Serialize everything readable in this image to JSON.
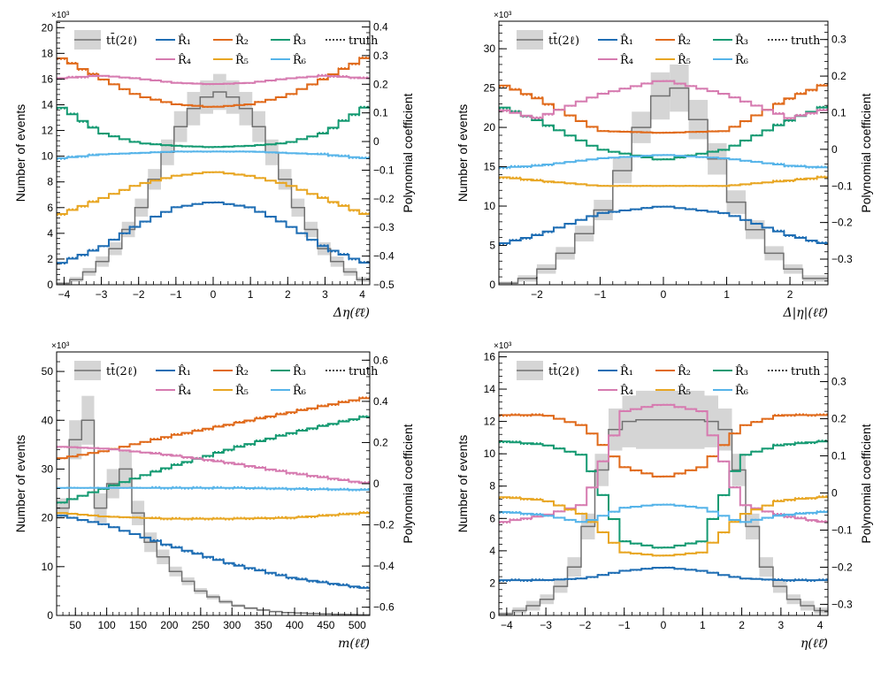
{
  "chart_data": [
    {
      "type": "line",
      "xlabel": "Δη(ℓ̄ℓ)",
      "ylabel": "Number of events",
      "y2label": "Polynomial coefficient",
      "multiplier": "×10³",
      "xlim": [
        -4.2,
        4.2
      ],
      "ylim": [
        0,
        20.5
      ],
      "y2lim": [
        -0.5,
        0.42
      ],
      "xticks": [
        -4,
        -3,
        -2,
        -1,
        0,
        1,
        2,
        3,
        4
      ],
      "xtick_labels": [
        "−4",
        "−3",
        "−2",
        "−1",
        "0",
        "1",
        "2",
        "3",
        "4"
      ],
      "yticks": [
        0,
        2,
        4,
        6,
        8,
        10,
        12,
        14,
        16,
        18,
        20
      ],
      "ytick_labels": [
        "0",
        "2",
        "4",
        "6",
        "8",
        "10",
        "12",
        "14",
        "16",
        "18",
        "20"
      ],
      "y2ticks": [
        -0.5,
        -0.4,
        -0.3,
        -0.2,
        -0.1,
        0,
        0.1,
        0.2,
        0.3,
        0.4
      ],
      "y2tick_labels": [
        "−0.5",
        "−0.4",
        "−0.3",
        "−0.2",
        "−0.1",
        "0",
        "0.1",
        "0.2",
        "0.3",
        "0.4"
      ],
      "legend": {
        "mc": "tt̄(2ℓ)",
        "truth": "truth",
        "series": [
          "R̂₁",
          "R̂₂",
          "R̂₃",
          "R̂₄",
          "R̂₅",
          "R̂₆"
        ]
      },
      "mc": {
        "x": [
          -4.2,
          -3.85,
          -3.5,
          -3.15,
          -2.8,
          -2.45,
          -2.1,
          -1.75,
          -1.4,
          -1.05,
          -0.7,
          -0.35,
          0,
          0.35,
          0.7,
          1.05,
          1.4,
          1.75,
          2.1,
          2.45,
          2.8,
          3.15,
          3.5,
          3.85
        ],
        "y": [
          0.1,
          0.4,
          1.0,
          1.8,
          2.8,
          4.3,
          6.0,
          8.2,
          10.3,
          12.3,
          13.7,
          14.6,
          15.0,
          14.6,
          13.7,
          12.3,
          10.3,
          8.2,
          6.0,
          4.3,
          2.8,
          1.8,
          1.0,
          0.4
        ],
        "err": [
          0.1,
          0.2,
          0.3,
          0.4,
          0.5,
          0.6,
          0.7,
          0.8,
          1.0,
          1.2,
          1.3,
          1.3,
          1.4,
          1.3,
          1.3,
          1.2,
          1.0,
          0.8,
          0.7,
          0.6,
          0.5,
          0.4,
          0.3,
          0.2
        ]
      },
      "series": [
        {
          "name": "R̂₁",
          "color": "#1f6eb4",
          "x": [
            -4.2,
            -3,
            -2,
            -1,
            0,
            1,
            2,
            3,
            4.2
          ],
          "y": [
            -0.43,
            -0.37,
            -0.29,
            -0.23,
            -0.21,
            -0.23,
            -0.29,
            -0.37,
            -0.43
          ]
        },
        {
          "name": "R̂₂",
          "color": "#e06a1b",
          "x": [
            -4.2,
            -3,
            -2,
            -1,
            0,
            1,
            2,
            3,
            4.2
          ],
          "y": [
            0.3,
            0.22,
            0.16,
            0.13,
            0.12,
            0.13,
            0.16,
            0.22,
            0.3
          ]
        },
        {
          "name": "R̂₃",
          "color": "#159a72",
          "x": [
            -4.2,
            -3,
            -2,
            -1,
            0,
            1,
            2,
            3,
            4.2
          ],
          "y": [
            0.13,
            0.03,
            -0.005,
            -0.015,
            -0.02,
            -0.015,
            -0.005,
            0.03,
            0.13
          ]
        },
        {
          "name": "R̂₄",
          "color": "#d67bb0",
          "x": [
            -4.2,
            -3,
            -2,
            -1,
            0,
            1,
            2,
            3,
            4.2
          ],
          "y": [
            0.22,
            0.23,
            0.22,
            0.205,
            0.2,
            0.205,
            0.22,
            0.23,
            0.22
          ]
        },
        {
          "name": "R̂₅",
          "color": "#e8a623",
          "x": [
            -4.2,
            -3,
            -2,
            -1,
            0,
            1,
            2,
            3,
            4.2
          ],
          "y": [
            -0.26,
            -0.2,
            -0.15,
            -0.12,
            -0.105,
            -0.12,
            -0.15,
            -0.2,
            -0.26
          ]
        },
        {
          "name": "R̂₆",
          "color": "#56b4e9",
          "x": [
            -4.2,
            -3,
            -2,
            -1,
            0,
            1,
            2,
            3,
            4.2
          ],
          "y": [
            -0.06,
            -0.045,
            -0.04,
            -0.035,
            -0.035,
            -0.035,
            -0.04,
            -0.045,
            -0.06
          ]
        }
      ]
    },
    {
      "type": "line",
      "xlabel": "Δ|η|(ℓℓ̄)",
      "ylabel": "Number of events",
      "y2label": "Polynomial coefficient",
      "multiplier": "×10³",
      "xlim": [
        -2.6,
        2.6
      ],
      "ylim": [
        0,
        33.5
      ],
      "y2lim": [
        -0.37,
        0.35
      ],
      "xticks": [
        -2,
        -1,
        0,
        1,
        2
      ],
      "xtick_labels": [
        "−2",
        "−1",
        "0",
        "1",
        "2"
      ],
      "yticks": [
        0,
        5,
        10,
        15,
        20,
        25,
        30
      ],
      "ytick_labels": [
        "0",
        "5",
        "10",
        "15",
        "20",
        "25",
        "30"
      ],
      "y2ticks": [
        -0.3,
        -0.2,
        -0.1,
        0,
        0.1,
        0.2,
        0.3
      ],
      "y2tick_labels": [
        "−0.3",
        "−0.2",
        "−0.1",
        "0",
        "0.1",
        "0.2",
        "0.3"
      ],
      "legend": {
        "mc": "tt̄(2ℓ)",
        "truth": "truth",
        "series": [
          "R̂₁",
          "R̂₂",
          "R̂₃",
          "R̂₄",
          "R̂₅",
          "R̂₆"
        ]
      },
      "mc": {
        "x": [
          -2.6,
          -2.3,
          -2.0,
          -1.7,
          -1.4,
          -1.1,
          -0.8,
          -0.5,
          -0.2,
          0.1,
          0.4,
          0.7,
          1.0,
          1.3,
          1.6,
          1.9,
          2.2
        ],
        "y": [
          0.2,
          0.8,
          2.0,
          4.0,
          6.5,
          9.5,
          14.5,
          20.0,
          24.0,
          25.0,
          21.0,
          16.0,
          10.5,
          7.0,
          4.0,
          2.0,
          0.8
        ],
        "err": [
          0.2,
          0.4,
          0.6,
          0.8,
          1.0,
          1.3,
          1.6,
          2.0,
          3.0,
          3.0,
          2.5,
          2.0,
          1.5,
          1.2,
          0.9,
          0.6,
          0.4
        ]
      },
      "series": [
        {
          "name": "R̂₁",
          "color": "#1f6eb4",
          "x": [
            -2.6,
            -2,
            -1,
            0,
            1,
            2,
            2.6
          ],
          "y": [
            -0.26,
            -0.235,
            -0.175,
            -0.155,
            -0.175,
            -0.235,
            -0.26
          ]
        },
        {
          "name": "R̂₂",
          "color": "#e06a1b",
          "x": [
            -2.6,
            -2,
            -1,
            0,
            1,
            2,
            2.6
          ],
          "y": [
            0.18,
            0.14,
            0.05,
            0.045,
            0.05,
            0.14,
            0.18
          ]
        },
        {
          "name": "R̂₃",
          "color": "#159a72",
          "x": [
            -2.6,
            -2,
            -1,
            0,
            1,
            2,
            2.6
          ],
          "y": [
            0.12,
            0.08,
            0.0,
            -0.03,
            0.0,
            0.08,
            0.12
          ]
        },
        {
          "name": "R̂₄",
          "color": "#d67bb0",
          "x": [
            -2.6,
            -2,
            -1,
            0,
            1,
            2,
            2.6
          ],
          "y": [
            0.11,
            0.085,
            0.15,
            0.19,
            0.15,
            0.085,
            0.11
          ]
        },
        {
          "name": "R̂₅",
          "color": "#e8a623",
          "x": [
            -2.6,
            -2,
            -1,
            0,
            1,
            2,
            2.6
          ],
          "y": [
            -0.075,
            -0.085,
            -0.1,
            -0.1,
            -0.1,
            -0.085,
            -0.075
          ]
        },
        {
          "name": "R̂₆",
          "color": "#56b4e9",
          "x": [
            -2.6,
            -2,
            -1,
            0,
            1,
            2,
            2.6
          ],
          "y": [
            -0.05,
            -0.045,
            -0.025,
            -0.015,
            -0.025,
            -0.045,
            -0.05
          ]
        }
      ]
    },
    {
      "type": "line",
      "xlabel": "m(ℓℓ̄)",
      "ylabel": "Number of events",
      "y2label": "Polynomial coefficient",
      "multiplier": "×10³",
      "xlim": [
        20,
        520
      ],
      "ylim": [
        0,
        54
      ],
      "y2lim": [
        -0.64,
        0.64
      ],
      "xticks": [
        50,
        100,
        150,
        200,
        250,
        300,
        350,
        400,
        450,
        500
      ],
      "xtick_labels": [
        "50",
        "100",
        "150",
        "200",
        "250",
        "300",
        "350",
        "400",
        "450",
        "500"
      ],
      "yticks": [
        0,
        10,
        20,
        30,
        40,
        50
      ],
      "ytick_labels": [
        "0",
        "10",
        "20",
        "30",
        "40",
        "50"
      ],
      "y2ticks": [
        -0.6,
        -0.4,
        -0.2,
        0,
        0.2,
        0.4,
        0.6
      ],
      "y2tick_labels": [
        "−0.6",
        "−0.4",
        "−0.2",
        "0",
        "0.2",
        "0.4",
        "0.6"
      ],
      "legend": {
        "mc": "tt̄(2ℓ)",
        "truth": "truth",
        "series": [
          "R̂₁",
          "R̂₂",
          "R̂₃",
          "R̂₄",
          "R̂₅",
          "R̂₆"
        ]
      },
      "mc": {
        "x": [
          20,
          40,
          60,
          80,
          100,
          120,
          140,
          160,
          180,
          200,
          220,
          240,
          260,
          280,
          300,
          320,
          340,
          360,
          380,
          400,
          420,
          440,
          460,
          480,
          500
        ],
        "y": [
          22.0,
          36.0,
          40.0,
          22.0,
          27.0,
          30.0,
          21.0,
          15.0,
          12.0,
          9.0,
          7.0,
          5.0,
          3.8,
          2.8,
          2.0,
          1.5,
          1.1,
          0.8,
          0.6,
          0.5,
          0.4,
          0.3,
          0.25,
          0.2,
          0.15
        ],
        "err": [
          2.0,
          4.0,
          5.0,
          3.0,
          3.0,
          4.0,
          2.5,
          2.0,
          1.5,
          1.0,
          0.8,
          0.6,
          0.5,
          0.4,
          0.3,
          0.25,
          0.2,
          0.15,
          0.1,
          0.1,
          0.1,
          0.1,
          0.05,
          0.05,
          0.05
        ]
      },
      "series": [
        {
          "name": "R̂₁",
          "color": "#1f6eb4",
          "x": [
            20,
            100,
            200,
            300,
            400,
            520
          ],
          "y": [
            -0.15,
            -0.2,
            -0.3,
            -0.39,
            -0.46,
            -0.51
          ]
        },
        {
          "name": "R̂₂",
          "color": "#e06a1b",
          "x": [
            20,
            100,
            200,
            300,
            400,
            520
          ],
          "y": [
            0.12,
            0.16,
            0.23,
            0.29,
            0.35,
            0.42
          ]
        },
        {
          "name": "R̂₃",
          "color": "#159a72",
          "x": [
            20,
            100,
            200,
            300,
            400,
            520
          ],
          "y": [
            -0.1,
            -0.02,
            0.08,
            0.17,
            0.25,
            0.33
          ]
        },
        {
          "name": "R̂₄",
          "color": "#d67bb0",
          "x": [
            20,
            100,
            200,
            300,
            400,
            520
          ],
          "y": [
            0.18,
            0.17,
            0.14,
            0.1,
            0.05,
            0.0
          ]
        },
        {
          "name": "R̂₅",
          "color": "#e8a623",
          "x": [
            20,
            100,
            200,
            300,
            400,
            520
          ],
          "y": [
            -0.14,
            -0.16,
            -0.17,
            -0.17,
            -0.165,
            -0.14
          ]
        },
        {
          "name": "R̂₆",
          "color": "#56b4e9",
          "x": [
            20,
            100,
            200,
            300,
            400,
            520
          ],
          "y": [
            -0.02,
            -0.02,
            -0.02,
            -0.02,
            -0.025,
            -0.03
          ]
        }
      ]
    },
    {
      "type": "line",
      "xlabel": "η(ℓℓ̄)",
      "ylabel": "Number of events",
      "y2label": "Polynomial coefficient",
      "multiplier": "×10³",
      "xlim": [
        -4.2,
        4.2
      ],
      "ylim": [
        0,
        16.3
      ],
      "y2lim": [
        -0.33,
        0.38
      ],
      "xticks": [
        -4,
        -3,
        -2,
        -1,
        0,
        1,
        2,
        3,
        4
      ],
      "xtick_labels": [
        "−4",
        "−3",
        "−2",
        "−1",
        "0",
        "1",
        "2",
        "3",
        "4"
      ],
      "yticks": [
        0,
        2,
        4,
        6,
        8,
        10,
        12,
        14,
        16
      ],
      "ytick_labels": [
        "0",
        "2",
        "4",
        "6",
        "8",
        "10",
        "12",
        "14",
        "16"
      ],
      "y2ticks": [
        -0.3,
        -0.2,
        -0.1,
        0,
        0.1,
        0.2,
        0.3
      ],
      "y2tick_labels": [
        "−0.3",
        "−0.2",
        "−0.1",
        "0",
        "0.1",
        "0.2",
        "0.3"
      ],
      "legend": {
        "mc": "tt̄(2ℓ)",
        "truth": "truth",
        "series": [
          "R̂₁",
          "R̂₂",
          "R̂₃",
          "R̂₄",
          "R̂₅",
          "R̂₆"
        ]
      },
      "mc": {
        "x": [
          -4.2,
          -3.85,
          -3.5,
          -3.15,
          -2.8,
          -2.45,
          -2.1,
          -1.75,
          -1.4,
          -1.05,
          -0.7,
          -0.35,
          0,
          0.35,
          0.7,
          1.05,
          1.4,
          1.75,
          2.1,
          2.45,
          2.8,
          3.15,
          3.5,
          3.85
        ],
        "y": [
          0.1,
          0.3,
          0.6,
          1.0,
          1.8,
          3.0,
          5.5,
          9.0,
          11.5,
          12.0,
          12.1,
          12.1,
          12.1,
          12.1,
          12.1,
          12.0,
          11.5,
          9.0,
          5.5,
          3.0,
          1.8,
          1.0,
          0.6,
          0.3
        ],
        "err": [
          0.1,
          0.2,
          0.3,
          0.3,
          0.4,
          0.6,
          0.8,
          1.0,
          1.3,
          1.6,
          1.8,
          1.8,
          1.8,
          1.8,
          1.8,
          1.6,
          1.3,
          1.0,
          0.8,
          0.6,
          0.4,
          0.3,
          0.3,
          0.2
        ]
      },
      "series": [
        {
          "name": "R̂₁",
          "color": "#1f6eb4",
          "x": [
            -4.2,
            -3,
            -2,
            -1,
            0,
            1,
            2,
            3,
            4.2
          ],
          "y": [
            -0.235,
            -0.235,
            -0.23,
            -0.21,
            -0.2,
            -0.21,
            -0.23,
            -0.235,
            -0.235
          ]
        },
        {
          "name": "R̂₂",
          "color": "#e06a1b",
          "x": [
            -4.2,
            -3,
            -2,
            -1,
            0,
            1,
            2,
            3,
            4.2
          ],
          "y": [
            0.21,
            0.21,
            0.18,
            0.07,
            0.04,
            0.07,
            0.18,
            0.21,
            0.21
          ]
        },
        {
          "name": "R̂₃",
          "color": "#159a72",
          "x": [
            -4.2,
            -3,
            -2,
            -1,
            0,
            1,
            2,
            3,
            4.2
          ],
          "y": [
            0.14,
            0.13,
            0.1,
            -0.13,
            -0.15,
            -0.13,
            0.1,
            0.13,
            0.14
          ]
        },
        {
          "name": "R̂₄",
          "color": "#d67bb0",
          "x": [
            -4.2,
            -3,
            -2,
            -1,
            0,
            1,
            2,
            3,
            4.2
          ],
          "y": [
            -0.08,
            -0.06,
            -0.03,
            0.22,
            0.24,
            0.22,
            -0.03,
            -0.06,
            -0.08
          ]
        },
        {
          "name": "R̂₅",
          "color": "#e8a623",
          "x": [
            -4.2,
            -3,
            -2,
            -1,
            0,
            1,
            2,
            3,
            4.2
          ],
          "y": [
            -0.01,
            -0.02,
            -0.06,
            -0.16,
            -0.17,
            -0.16,
            -0.06,
            -0.02,
            -0.01
          ]
        },
        {
          "name": "R̂₆",
          "color": "#56b4e9",
          "x": [
            -4.2,
            -3,
            -2,
            -1,
            0,
            1,
            2,
            3,
            4.2
          ],
          "y": [
            -0.05,
            -0.06,
            -0.08,
            -0.04,
            -0.03,
            -0.04,
            -0.08,
            -0.06,
            -0.05
          ]
        }
      ]
    }
  ]
}
